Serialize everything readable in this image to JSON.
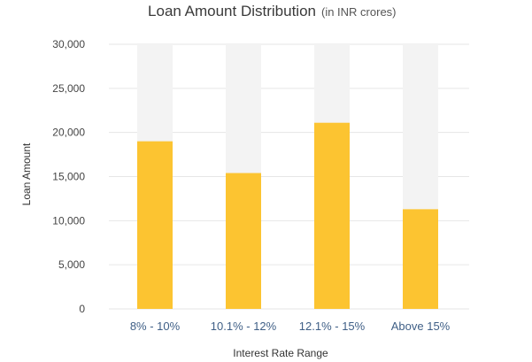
{
  "chart_data": {
    "type": "bar",
    "title": "Loan Amount Distribution",
    "subtitle": "(in INR crores)",
    "xlabel": "Interest Rate Range",
    "ylabel": "Loan Amount",
    "categories": [
      "8% - 10%",
      "10.1% - 12%",
      "12.1% - 15%",
      "Above 15%"
    ],
    "values": [
      19000,
      15400,
      21100,
      11300
    ],
    "ylim": [
      0,
      30000
    ],
    "yticks": [
      0,
      5000,
      10000,
      15000,
      20000,
      25000,
      30000
    ],
    "ytick_labels": [
      "0",
      "5,000",
      "10,000",
      "15,000",
      "20,000",
      "25,000",
      "30,000"
    ],
    "grid": true,
    "legend": "none",
    "colors": {
      "bar": "#fcc431",
      "track": "#f3f3f3",
      "category_text": "#3f5f86"
    }
  }
}
